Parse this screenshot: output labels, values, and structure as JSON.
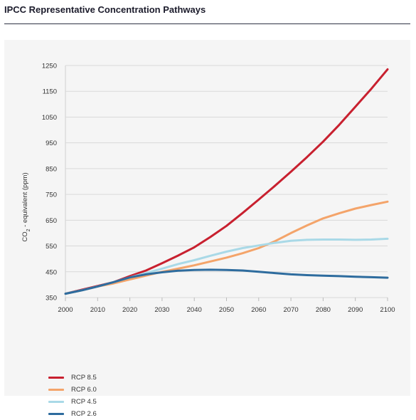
{
  "header": {
    "title": "IPCC Representative Concentration Pathways"
  },
  "chart_data": {
    "type": "line",
    "title": "IPCC Representative Concentration Pathways",
    "xlabel": "",
    "ylabel": "CO2 - equivalent (ppm)",
    "ylabel_parts": {
      "pre": "CO",
      "sub": "2",
      "post": " - equivalent (ppm)"
    },
    "xlim": [
      2000,
      2100
    ],
    "ylim": [
      350,
      1250
    ],
    "xticks": [
      2000,
      2010,
      2020,
      2030,
      2040,
      2050,
      2060,
      2070,
      2080,
      2090,
      2100
    ],
    "yticks": [
      350,
      450,
      550,
      650,
      750,
      850,
      950,
      1050,
      1150,
      1250
    ],
    "grid": "horizontal",
    "legend_position": "bottom-left",
    "x": [
      2000,
      2005,
      2010,
      2015,
      2020,
      2025,
      2030,
      2035,
      2040,
      2045,
      2050,
      2055,
      2060,
      2065,
      2070,
      2075,
      2080,
      2085,
      2090,
      2095,
      2100
    ],
    "series": [
      {
        "name": "RCP 8.5",
        "color": "#c8202f",
        "values": [
          365,
          380,
          395,
          410,
          433,
          455,
          483,
          513,
          545,
          585,
          628,
          678,
          730,
          783,
          838,
          895,
          955,
          1020,
          1090,
          1160,
          1235
        ]
      },
      {
        "name": "RCP 6.0",
        "color": "#f4a46a",
        "values": [
          365,
          378,
          393,
          405,
          420,
          435,
          450,
          462,
          475,
          490,
          505,
          522,
          542,
          568,
          600,
          630,
          657,
          677,
          695,
          709,
          722
        ]
      },
      {
        "name": "RCP 4.5",
        "color": "#a9d9e7",
        "values": [
          365,
          378,
          393,
          410,
          428,
          445,
          462,
          480,
          495,
          512,
          528,
          542,
          552,
          562,
          570,
          574,
          575,
          575,
          574,
          575,
          578
        ]
      },
      {
        "name": "RCP 2.6",
        "color": "#2e6c9e",
        "values": [
          365,
          378,
          393,
          410,
          428,
          440,
          448,
          454,
          457,
          458,
          457,
          455,
          450,
          445,
          440,
          437,
          435,
          433,
          431,
          429,
          427
        ]
      }
    ]
  }
}
